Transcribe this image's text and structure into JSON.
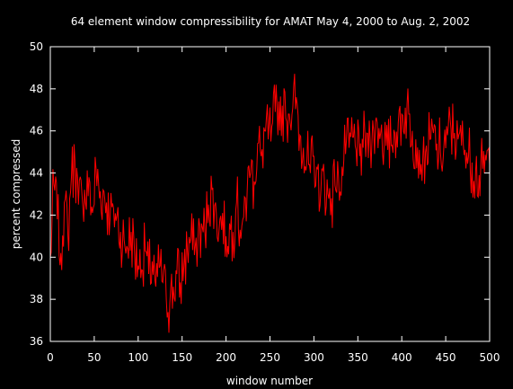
{
  "chart_data": {
    "type": "line",
    "title": "64 element window compressibility for AMAT May 4, 2000 to Aug. 2, 2002",
    "xlabel": "window number",
    "ylabel": "percent compressed",
    "xlim": [
      0,
      500
    ],
    "ylim": [
      36,
      50
    ],
    "xticks": [
      0,
      50,
      100,
      150,
      200,
      250,
      300,
      350,
      400,
      450,
      500
    ],
    "yticks": [
      36,
      38,
      40,
      42,
      44,
      46,
      48,
      50
    ],
    "grid": false,
    "legend": "none",
    "background": "#000000",
    "axis_color": "#ffffff",
    "series": [
      {
        "color": "#ff0000",
        "sample_step": 4,
        "x_start": 0,
        "values": [
          40.0,
          43.5,
          41.8,
          40.2,
          42.6,
          41.0,
          43.8,
          44.6,
          42.5,
          43.0,
          42.6,
          43.8,
          42.1,
          44.2,
          42.8,
          43.2,
          42.6,
          41.8,
          42.3,
          42.0,
          41.2,
          40.8,
          40.4,
          41.2,
          40.1,
          39.6,
          39.4,
          40.3,
          39.2,
          39.8,
          38.6,
          39.5,
          38.8,
          38.0,
          37.8,
          38.6,
          39.2,
          38.8,
          39.6,
          40.3,
          40.9,
          40.1,
          40.8,
          41.6,
          41.2,
          42.5,
          43.2,
          42.6,
          41.3,
          42.1,
          41.0,
          41.6,
          41.2,
          42.6,
          41.3,
          41.9,
          43.1,
          44.0,
          43.6,
          45.4,
          44.8,
          46.0,
          45.6,
          46.2,
          46.9,
          47.4,
          47.2,
          46.6,
          46.8,
          47.1,
          47.6,
          45.8,
          45.2,
          44.6,
          44.0,
          44.8,
          44.2,
          43.2,
          43.6,
          43.0,
          42.8,
          43.4,
          43.8,
          44.3,
          44.9,
          45.2,
          45.7,
          45.1,
          44.8,
          45.2,
          45.9,
          45.6,
          46.0,
          46.4,
          45.9,
          45.4,
          45.1,
          45.3,
          45.9,
          46.4,
          46.8,
          47.1,
          46.8,
          46.0,
          45.6,
          45.1,
          44.8,
          45.3,
          45.6,
          45.9,
          45.4,
          45.0,
          45.3,
          45.8,
          46.1,
          45.9,
          45.6,
          45.3,
          45.1,
          44.8,
          44.5,
          44.1,
          43.9,
          44.2,
          44.6,
          44.4
        ]
      }
    ]
  }
}
